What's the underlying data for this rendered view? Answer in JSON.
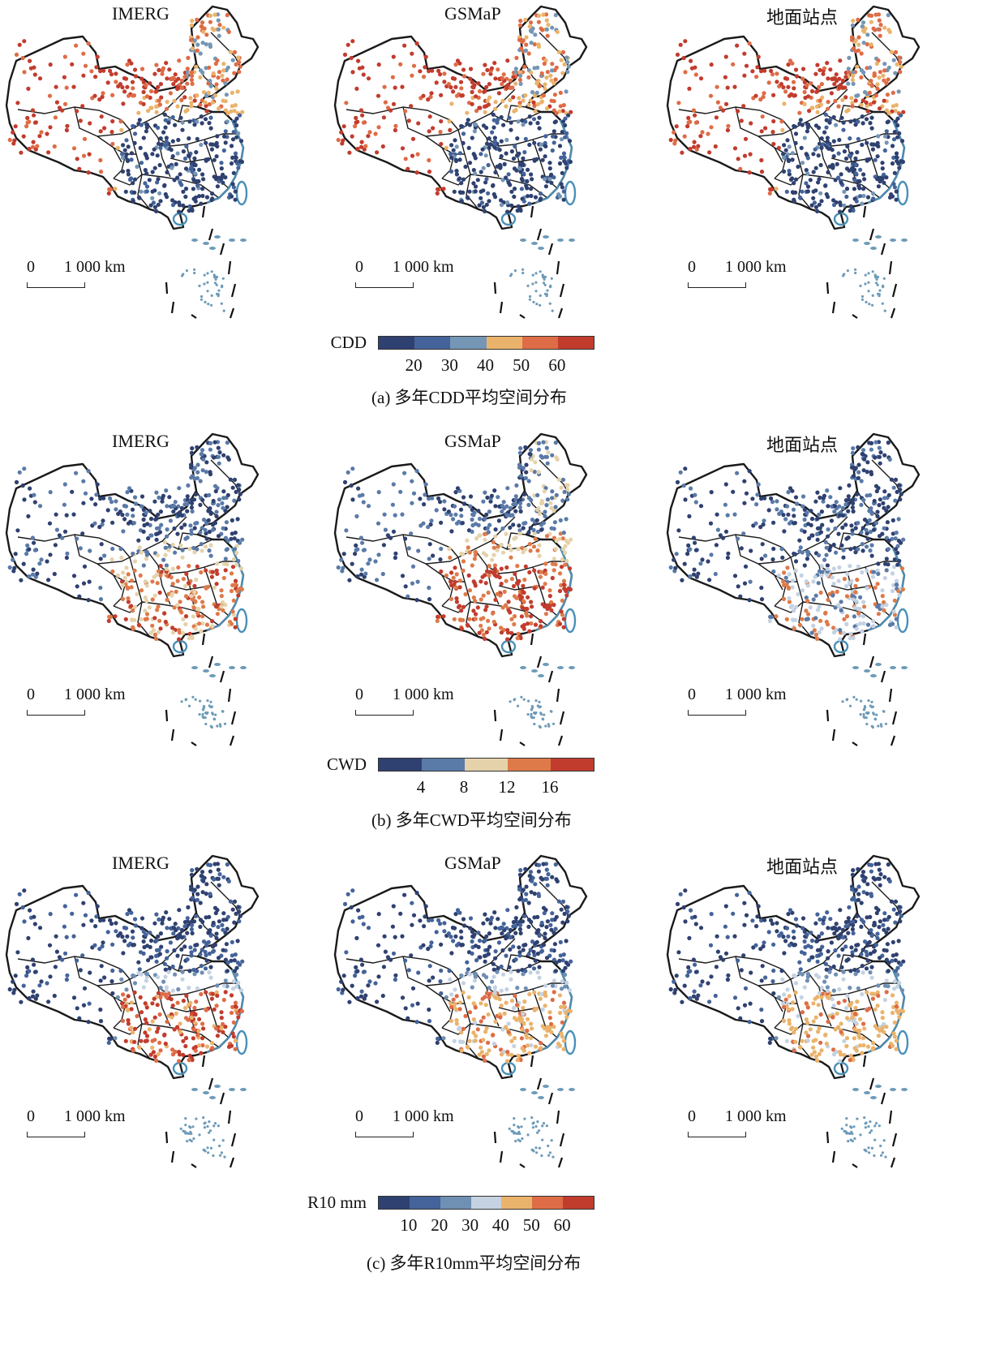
{
  "colors": {
    "dark_blue": "#2f4170",
    "blue": "#44639a",
    "steel_blue": "#7596b5",
    "light_blue": "#c4d2e2",
    "tan": "#e8d4aa",
    "orange_yellow": "#eab36c",
    "orange": "#de6c47",
    "red": "#c23c2e",
    "boundary": "#1a1a1a",
    "coast": "#4a90b8"
  },
  "scale_bar": {
    "zero": "0",
    "length": "1 000 km"
  },
  "sections": [
    {
      "panels": [
        {
          "title": "IMERG"
        },
        {
          "title": "GSMaP"
        },
        {
          "title": "地面站点"
        }
      ],
      "legend": {
        "label": "CDD",
        "colors": [
          "#2f4170",
          "#44639a",
          "#7596b5",
          "#eab36c",
          "#de6c47",
          "#c23c2e"
        ],
        "ticks": [
          "20",
          "30",
          "40",
          "50",
          "60"
        ]
      },
      "caption": "(a) 多年CDD平均空间分布"
    },
    {
      "panels": [
        {
          "title": "IMERG"
        },
        {
          "title": "GSMaP"
        },
        {
          "title": "地面站点"
        }
      ],
      "legend": {
        "label": "CWD",
        "colors": [
          "#2f4170",
          "#5a7aa8",
          "#e5d2ab",
          "#de7a4a",
          "#c23c2e"
        ],
        "ticks": [
          "4",
          "8",
          "12",
          "16"
        ]
      },
      "caption": "(b) 多年CWD平均空间分布"
    },
    {
      "panels": [
        {
          "title": "IMERG"
        },
        {
          "title": "GSMaP"
        },
        {
          "title": "地面站点"
        }
      ],
      "legend": {
        "label": "R10 mm",
        "colors": [
          "#2f4170",
          "#44639a",
          "#6f8fb3",
          "#c4d2e2",
          "#eab36c",
          "#de6c47",
          "#c23c2e"
        ],
        "ticks": [
          "10",
          "20",
          "30",
          "40",
          "50",
          "60"
        ]
      },
      "caption": "(c) 多年R10mm平均空间分布"
    }
  ]
}
